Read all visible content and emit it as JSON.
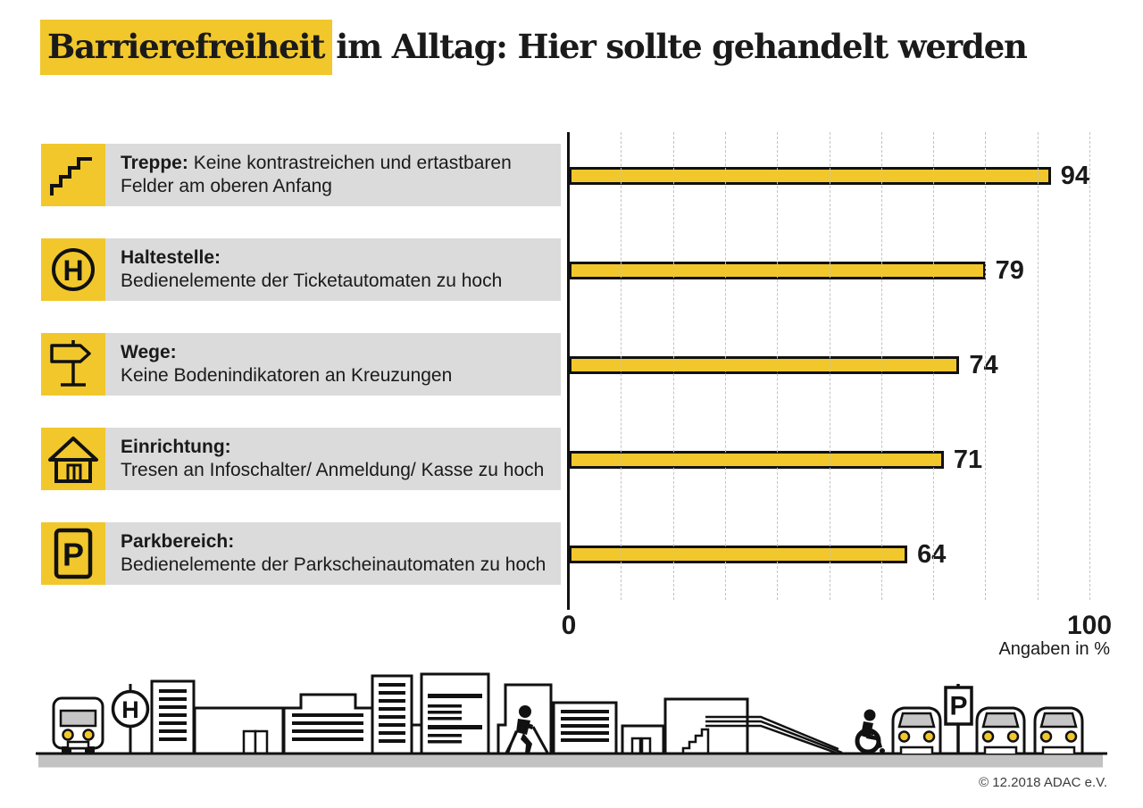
{
  "title": {
    "highlight": "Barrierefreiheit",
    "rest": "im Alltag: Hier sollte gehandelt werden"
  },
  "chart_data": {
    "type": "bar",
    "orientation": "horizontal",
    "title": "Barrierefreiheit im Alltag: Hier sollte gehandelt werden",
    "categories": [
      "Treppe",
      "Haltestelle",
      "Wege",
      "Einrichtung",
      "Parkbereich"
    ],
    "values": [
      94,
      79,
      74,
      71,
      64
    ],
    "rows": [
      {
        "icon": "stairs-icon",
        "label": "Treppe:",
        "desc": "Keine kontrastreichen und ertastbaren Felder am oberen Anfang",
        "value": 94
      },
      {
        "icon": "bus-stop-icon",
        "label": "Haltestelle:",
        "desc": "Bedienelemente der Ticketautomaten zu hoch",
        "value": 79
      },
      {
        "icon": "signpost-icon",
        "label": "Wege:",
        "desc": "Keine Bodenindikatoren an Kreuzungen",
        "value": 74
      },
      {
        "icon": "building-icon",
        "label": "Einrichtung:",
        "desc": "Tresen an Infoschalter/ Anmeldung/ Kasse zu hoch",
        "value": 71
      },
      {
        "icon": "parking-icon",
        "label": "Parkbereich:",
        "desc": "Bedienelemente der Parkscheinautomaten zu hoch",
        "value": 64
      }
    ],
    "xlim": [
      0,
      100
    ],
    "grid_interval": 10,
    "grid": "dashed-vertical",
    "axis": {
      "min_label": "0",
      "max_label": "100",
      "note": "Angaben in %"
    },
    "legend": "none"
  },
  "footer": {
    "copyright": "© 12.2018 ADAC e.V."
  },
  "colors": {
    "accent_yellow": "#F1C72C",
    "band_gray": "#DBDBDB",
    "ground_gray": "#C2C2C2",
    "windshield_gray": "#C6C6C6",
    "ink": "#111111"
  }
}
